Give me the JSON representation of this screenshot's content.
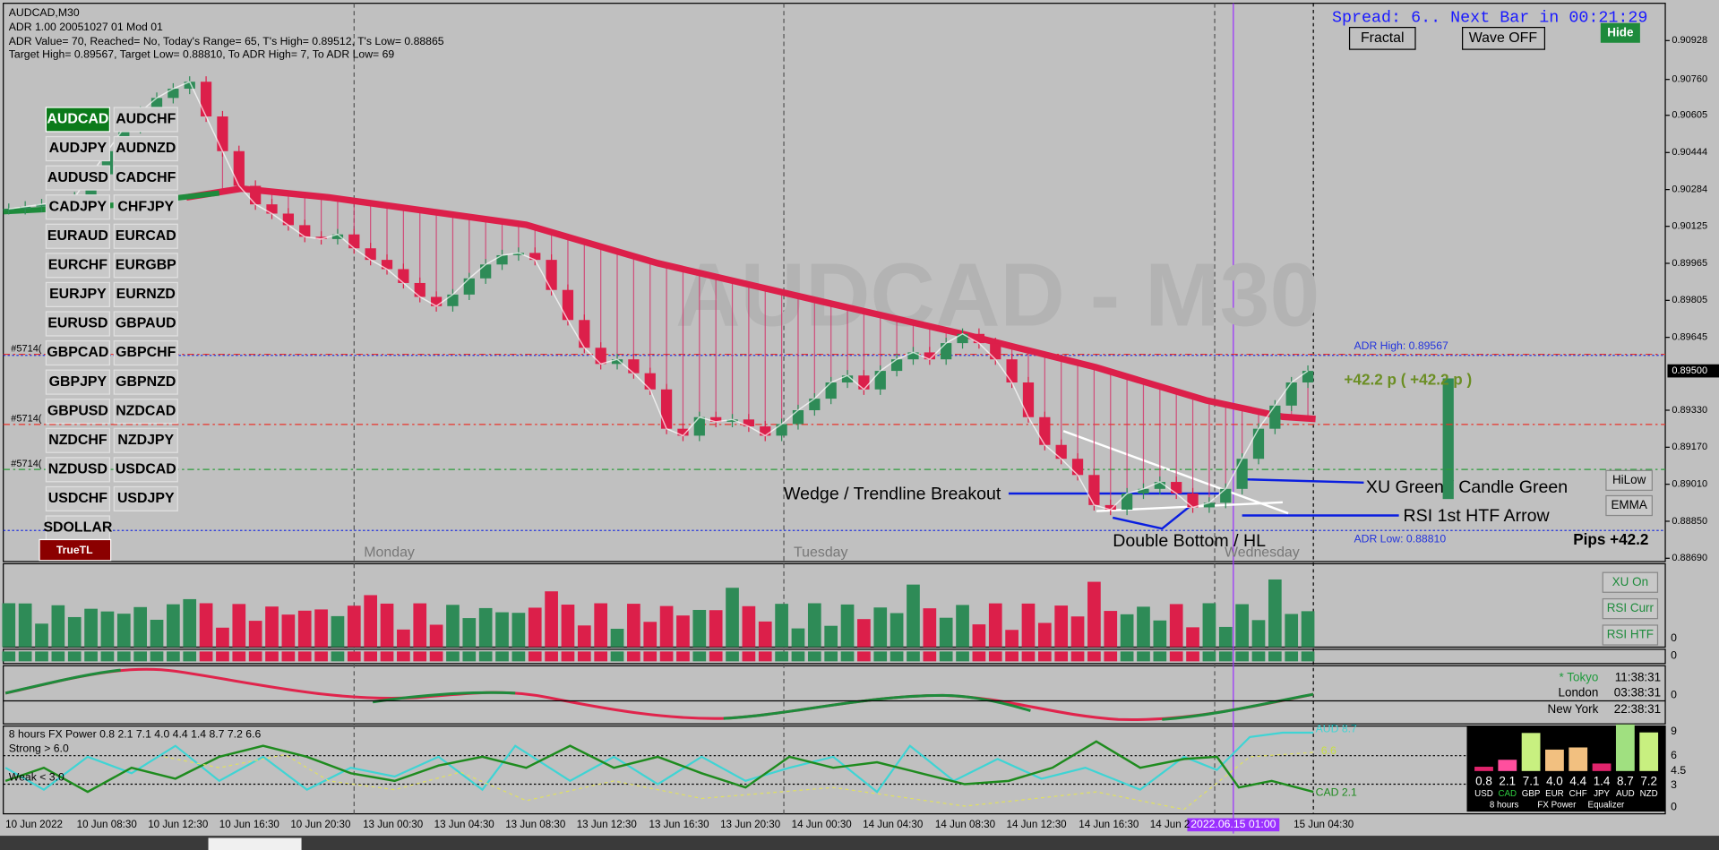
{
  "window": {
    "symbol": "AUDCAD,M30"
  },
  "info": [
    "ADR 1.00 20051027 01 Mod 01",
    "ADR Value= 70, Reached= No, Today's Range= 65, T's High= 0.89512, T's Low= 0.88865",
    "Target High= 0.89567, Target Low= 0.88810, To ADR High= 7, To ADR Low= 69"
  ],
  "spread": "Spread: 6.. Next Bar in 00:21:29",
  "toolbar": [
    "Fractal",
    "Wave OFF",
    "Hide"
  ],
  "symbols": [
    "AUDCAD",
    "AUDCHF",
    "AUDJPY",
    "AUDNZD",
    "AUDUSD",
    "CADCHF",
    "CADJPY",
    "CHFJPY",
    "EURAUD",
    "EURCAD",
    "EURCHF",
    "EURGBP",
    "EURJPY",
    "EURNZD",
    "EURUSD",
    "GBPAUD",
    "GBPCAD",
    "GBPCHF",
    "GBPJPY",
    "GBPNZD",
    "GBPUSD",
    "NZDCAD",
    "NZDCHF",
    "NZDJPY",
    "NZDUSD",
    "USDCAD",
    "USDCHF",
    "USDJPY",
    "SDOLLAR"
  ],
  "true_tl": "TrueTL",
  "watermark": "AUDCAD - M30",
  "order_tags": [
    "#5714(",
    "#5714(",
    "#5714("
  ],
  "days": [
    "Monday",
    "Tuesday",
    "Wednesday"
  ],
  "price_axis": [
    0.90928,
    {
      "value": 0.9076,
      "label": "0.90760"
    },
    0.90605,
    0.90444,
    0.90284,
    0.90125,
    0.89965,
    0.89805,
    0.89645,
    {
      "value": 0.8933,
      "label": "0.89330"
    },
    {
      "value": 0.8917,
      "label": "0.89170"
    },
    {
      "value": 0.8901,
      "label": "0.89010"
    },
    {
      "value": 0.8885,
      "label": "0.88850"
    },
    {
      "value": 0.8869,
      "label": "0.88690"
    }
  ],
  "current_price": {
    "value": 0.895,
    "label": "0.89500"
  },
  "candles": {
    "close": [
      0.902,
      0.9021,
      0.9022,
      0.9023,
      0.9025,
      0.9035,
      0.9045,
      0.9055,
      0.9062,
      0.9068,
      0.9072,
      0.9075,
      0.906,
      0.9045,
      0.903,
      0.9022,
      0.9018,
      0.9013,
      0.9008,
      0.9007,
      0.9009,
      0.9003,
      0.8998,
      0.8994,
      0.8988,
      0.8982,
      0.8978,
      0.8983,
      0.899,
      0.8996,
      0.9,
      0.9001,
      0.8998,
      0.8985,
      0.8972,
      0.896,
      0.8953,
      0.8955,
      0.8949,
      0.8942,
      0.8925,
      0.8922,
      0.893,
      0.8928,
      0.8929,
      0.8926,
      0.8922,
      0.8927,
      0.8933,
      0.8938,
      0.8945,
      0.8948,
      0.8942,
      0.895,
      0.8955,
      0.8958,
      0.8955,
      0.8962,
      0.8966,
      0.8962,
      0.8955,
      0.8945,
      0.893,
      0.8918,
      0.8912,
      0.8905,
      0.8892,
      0.889,
      0.8897,
      0.8899,
      0.8902,
      0.8897,
      0.8891,
      0.8893,
      0.8899,
      0.8912,
      0.8925,
      0.8935,
      0.8945,
      0.895
    ]
  },
  "adr_high": {
    "value": 0.89567,
    "label": "ADR High: 0.89567"
  },
  "adr_low": {
    "value": 0.8881,
    "label": "ADR Low: 0.88810"
  },
  "profit": "+42.2 p ( +42.2 p )",
  "pips": "Pips +42.2",
  "annotations": [
    "Wedge / Trendline Breakout",
    "XU Green / Candle Green",
    "RSI 1st HTF Arrow",
    "Double Bottom / HL"
  ],
  "side_buttons": [
    "HiLow",
    "EMMA",
    "XU On",
    "RSI Curr",
    "RSI HTF"
  ],
  "sub_axis": [
    "0",
    "0",
    "0"
  ],
  "clock": [
    {
      "city": "* Tokyo",
      "time": "11:38:31"
    },
    {
      "city": "London",
      "time": "03:38:31"
    },
    {
      "city": "New York",
      "time": "22:38:31"
    }
  ],
  "fx_power": {
    "title": "8 hours FX Power 0.8 2.1 7.1 4.0 4.4 1.4 8.7 7.2 6.6",
    "strong": "Strong > 6.0",
    "weak": "Weak < 3.0",
    "line_labels": [
      "AUD 8.7",
      "6.6",
      "CAD 2.1"
    ],
    "axis": [
      "9",
      "6",
      "4.5",
      "3",
      "0"
    ]
  },
  "equalizer": {
    "currencies": [
      "USD",
      "CAD",
      "GBP",
      "EUR",
      "CHF",
      "JPY",
      "AUD",
      "NZD"
    ],
    "values": [
      0.8,
      2.1,
      7.1,
      {
        "value": 4,
        "label": "4.0"
      },
      4.4,
      1.4,
      8.7,
      7.2
    ],
    "footer": [
      "8 hours",
      "FX Power",
      "Equalizer"
    ]
  },
  "time_axis": [
    "10 Jun 2022",
    "10 Jun 08:30",
    "10 Jun 12:30",
    "10 Jun 16:30",
    "10 Jun 20:30",
    "13 Jun 00:30",
    "13 Jun 04:30",
    "13 Jun 08:30",
    "13 Jun 12:30",
    "13 Jun 16:30",
    "13 Jun 20:30",
    "14 Jun 00:30",
    "14 Jun 04:30",
    "14 Jun 08:30",
    "14 Jun 12:30",
    "14 Jun 16:30",
    "14 Jun 2",
    "15 Jun 04:30"
  ],
  "crosshair_time": "2022.06.15 01:00"
}
